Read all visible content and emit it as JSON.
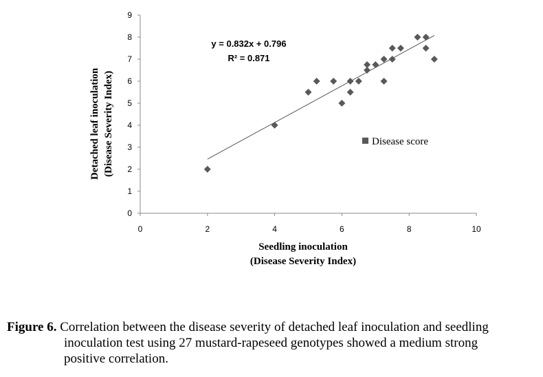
{
  "chart_data": {
    "type": "scatter",
    "title": "",
    "xlabel": [
      "Seedling inoculation",
      "(Disease Severity Index)"
    ],
    "ylabel": [
      "Detached leaf inoculation",
      "(Disease Severity Index)"
    ],
    "xlim": [
      0,
      10
    ],
    "ylim": [
      0,
      9
    ],
    "x_ticks": [
      0,
      2,
      4,
      6,
      8,
      10
    ],
    "y_ticks": [
      0,
      1,
      2,
      3,
      4,
      5,
      6,
      7,
      8,
      9
    ],
    "grid": false,
    "legend": {
      "label": "Disease score",
      "position": "center-right"
    },
    "series": [
      {
        "name": "Disease score",
        "marker": "diamond",
        "color": "#595959",
        "points": [
          [
            2,
            2
          ],
          [
            4,
            4
          ],
          [
            5,
            5.5
          ],
          [
            5.25,
            6
          ],
          [
            5.75,
            6
          ],
          [
            6,
            5
          ],
          [
            6.25,
            5.5
          ],
          [
            6.25,
            6
          ],
          [
            6.5,
            6
          ],
          [
            6.75,
            6.5
          ],
          [
            6.75,
            6.75
          ],
          [
            7,
            6.75
          ],
          [
            7.25,
            6
          ],
          [
            7.25,
            7
          ],
          [
            7.5,
            7
          ],
          [
            7.5,
            7.5
          ],
          [
            7.75,
            7.5
          ],
          [
            8.25,
            8
          ],
          [
            8.5,
            8
          ],
          [
            8.5,
            7.5
          ],
          [
            8.75,
            7
          ]
        ]
      }
    ],
    "trendline": {
      "slope": 0.832,
      "intercept": 0.796,
      "x_range": [
        2,
        8.75
      ],
      "equation": "y = 0.832x + 0.796",
      "r2_label": "R² = 0.871"
    }
  },
  "caption": {
    "label": "Figure 6.",
    "line1": "Correlation between the disease severity of detached leaf inoculation and seedling",
    "line2": "inoculation test using 27 mustard-rapeseed genotypes showed a medium strong",
    "line3": "positive  correlation."
  },
  "colors": {
    "marker": "#595959",
    "axis": "#888888",
    "text": "#000000"
  }
}
